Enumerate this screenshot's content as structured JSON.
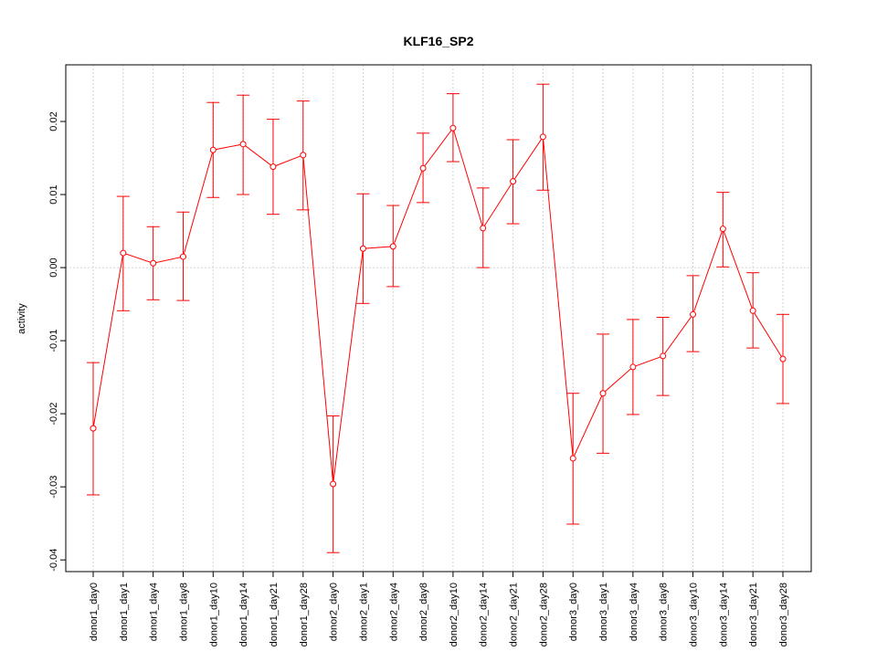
{
  "chart_data": {
    "type": "line",
    "title": "KLF16_SP2",
    "xlabel": "",
    "ylabel": "activity",
    "ylim": [
      -0.0416,
      0.02775
    ],
    "yticks": [
      -0.04,
      -0.03,
      -0.02,
      -0.01,
      0.0,
      0.01,
      0.02
    ],
    "ytick_labels": [
      "-0.04",
      "-0.03",
      "-0.02",
      "-0.01",
      "0.00",
      "0.01",
      "0.02"
    ],
    "grid": true,
    "color": "#ff0000",
    "categories": [
      "donor1_day0",
      "donor1_day1",
      "donor1_day4",
      "donor1_day8",
      "donor1_day10",
      "donor1_day14",
      "donor1_day21",
      "donor1_day28",
      "donor2_day0",
      "donor2_day1",
      "donor2_day4",
      "donor2_day8",
      "donor2_day10",
      "donor2_day14",
      "donor2_day21",
      "donor2_day28",
      "donor3_day0",
      "donor3_day1",
      "donor3_day4",
      "donor3_day8",
      "donor3_day10",
      "donor3_day14",
      "donor3_day21",
      "donor3_day28"
    ],
    "values": [
      -0.022,
      0.002,
      0.0006,
      0.0015,
      0.0161,
      0.0169,
      0.0138,
      0.0154,
      -0.0296,
      0.0026,
      0.0029,
      0.0136,
      0.0191,
      0.0054,
      0.0118,
      0.0179,
      -0.0261,
      -0.0172,
      -0.0136,
      -0.0121,
      -0.0064,
      0.0053,
      -0.0059,
      -0.0125
    ],
    "upper": [
      -0.013,
      0.00975,
      0.0056,
      0.0076,
      0.0226,
      0.0236,
      0.0203,
      0.0228,
      -0.0203,
      0.0101,
      0.0085,
      0.0184,
      0.0238,
      0.0109,
      0.0175,
      0.0251,
      -0.0172,
      -0.0091,
      -0.0071,
      -0.0068,
      -0.0011,
      0.0103,
      -0.0007,
      -0.0064
    ],
    "lower": [
      -0.0311,
      -0.0059,
      -0.0044,
      -0.0045,
      0.0096,
      0.01,
      0.0073,
      0.0079,
      -0.039,
      -0.0049,
      -0.0026,
      0.0089,
      0.0145,
      0.0,
      0.006,
      0.0106,
      -0.0351,
      -0.0254,
      -0.0201,
      -0.0175,
      -0.0115,
      0.0001,
      -0.011,
      -0.0186
    ]
  }
}
